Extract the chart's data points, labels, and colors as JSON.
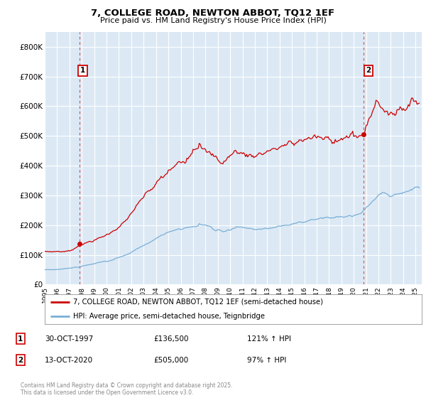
{
  "title_line1": "7, COLLEGE ROAD, NEWTON ABBOT, TQ12 1EF",
  "title_line2": "Price paid vs. HM Land Registry's House Price Index (HPI)",
  "ylim": [
    0,
    850000
  ],
  "yticks": [
    0,
    100000,
    200000,
    300000,
    400000,
    500000,
    600000,
    700000,
    800000
  ],
  "ytick_labels": [
    "£0",
    "£100K",
    "£200K",
    "£300K",
    "£400K",
    "£500K",
    "£600K",
    "£700K",
    "£800K"
  ],
  "xlim_start": 1995.0,
  "xlim_end": 2025.5,
  "bg_color": "#dce9f5",
  "grid_color": "#ffffff",
  "line_color_red": "#cc0000",
  "line_color_blue": "#7aaed6",
  "ann1_x": 1997.83,
  "ann1_y": 136500,
  "ann2_x": 2020.79,
  "ann2_y": 505000,
  "legend_entry1": "7, COLLEGE ROAD, NEWTON ABBOT, TQ12 1EF (semi-detached house)",
  "legend_entry2": "HPI: Average price, semi-detached house, Teignbridge",
  "footer": "Contains HM Land Registry data © Crown copyright and database right 2025.\nThis data is licensed under the Open Government Licence v3.0.",
  "table_row1_label": "1",
  "table_row1_date": "30-OCT-1997",
  "table_row1_price": "£136,500",
  "table_row1_hpi": "121% ↑ HPI",
  "table_row2_label": "2",
  "table_row2_date": "13-OCT-2020",
  "table_row2_price": "£505,000",
  "table_row2_hpi": "97% ↑ HPI"
}
